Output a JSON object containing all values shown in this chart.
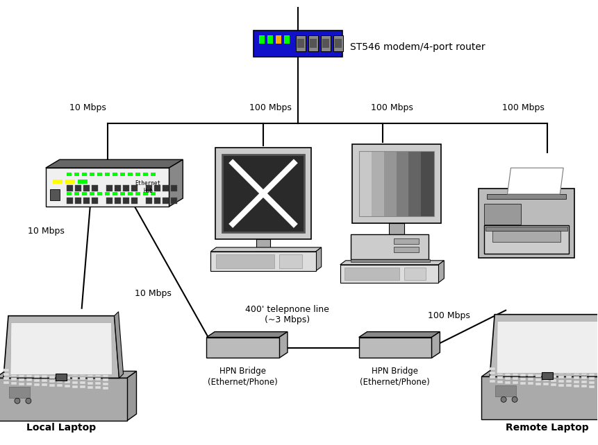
{
  "bg_color": "#ffffff",
  "router_label": "ST546 modem/4-port router",
  "speeds": {
    "hub_from_bus": "10 Mbps",
    "mac_from_bus": "100 Mbps",
    "pc_from_bus": "100 Mbps",
    "printer_from_bus": "100 Mbps",
    "hub_to_local": "10 Mbps",
    "hub_to_hpn": "10 Mbps",
    "phone_line": "400' telepnone line\n(~3 Mbps)",
    "hpn_to_remote": "100 Mbps"
  },
  "labels": {
    "local_laptop": "Local Laptop",
    "remote_laptop": "Remote Laptop",
    "hpn1": "HPN Bridge\n(Ethernet/Phone)",
    "hpn2": "HPN Bridge\n(Ethernet/Phone)"
  }
}
